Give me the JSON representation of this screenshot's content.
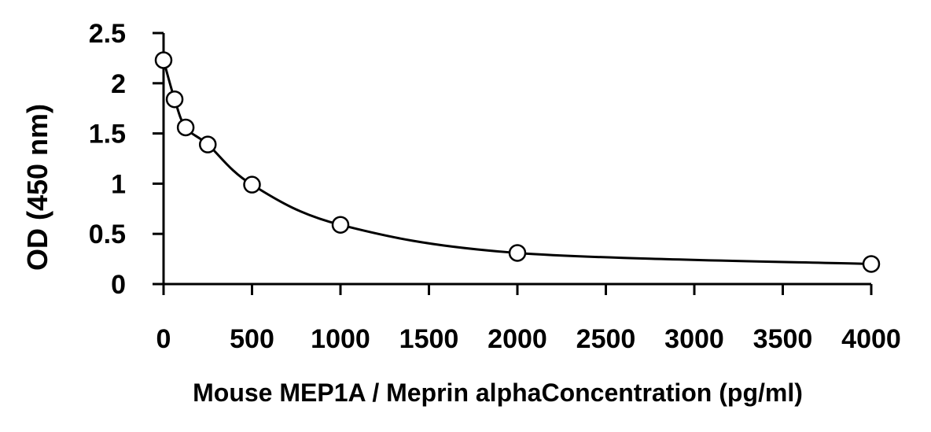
{
  "chart_data": {
    "type": "scatter",
    "title": "",
    "xlabel": "Mouse MEP1A / Meprin alphaConcentration (pg/ml)",
    "ylabel": "OD (450 nm)",
    "xlim": [
      0,
      4000
    ],
    "ylim": [
      0,
      2.5
    ],
    "x_ticks": [
      "0",
      "500",
      "1000",
      "1500",
      "2000",
      "2500",
      "3000",
      "3500",
      "4000"
    ],
    "y_ticks": [
      "0",
      "0.5",
      "1",
      "1.5",
      "2",
      "2.5"
    ],
    "grid": false,
    "legend": "none",
    "series": [
      {
        "x": [
          0,
          62.5,
          125,
          250,
          500,
          1000,
          2000,
          4000
        ],
        "y": [
          2.23,
          1.84,
          1.56,
          1.39,
          0.99,
          0.59,
          0.31,
          0.2
        ]
      }
    ],
    "curve_fit": "smooth",
    "marker": "open-circle"
  }
}
